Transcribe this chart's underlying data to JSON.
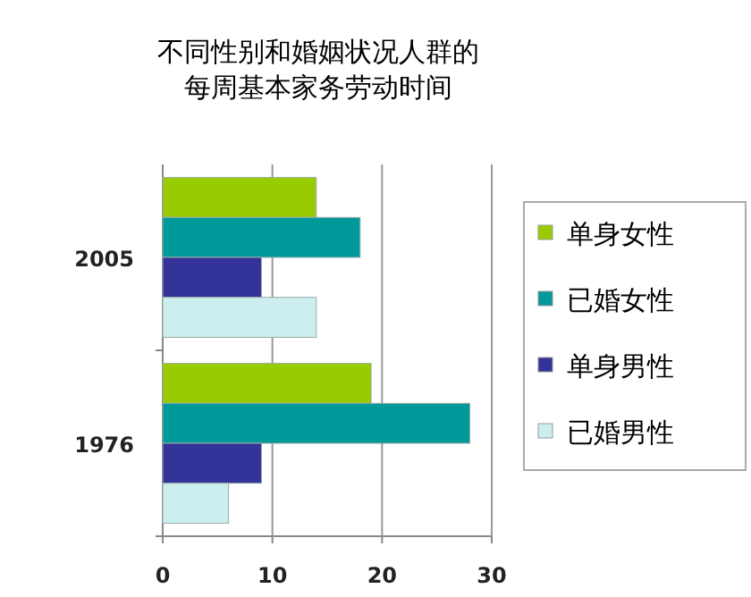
{
  "chart_data": {
    "type": "bar",
    "orientation": "horizontal",
    "title": "不同性别和婚姻状况人群的每周基本家务劳动时间",
    "categories": [
      "2005",
      "1976"
    ],
    "series": [
      {
        "name": "单身女性",
        "color": "#99cc00",
        "values": [
          14,
          19
        ]
      },
      {
        "name": "已婚女性",
        "color": "#009999",
        "values": [
          18,
          28
        ]
      },
      {
        "name": "单身男性",
        "color": "#333399",
        "values": [
          9,
          9
        ]
      },
      {
        "name": "已婚男性",
        "color": "#cceeee",
        "values": [
          14,
          6
        ]
      }
    ],
    "xlim": [
      0,
      30
    ],
    "xticks": [
      0,
      10,
      20,
      30
    ],
    "grid": "x",
    "legend": "right"
  }
}
